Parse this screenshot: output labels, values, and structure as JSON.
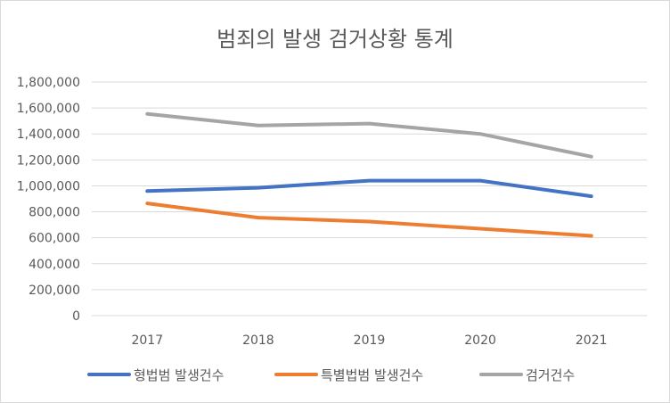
{
  "chart_data": {
    "type": "line",
    "title": "범죄의 발생 검거상황 통계",
    "xlabel": "",
    "ylabel": "",
    "categories": [
      "2017",
      "2018",
      "2019",
      "2020",
      "2021"
    ],
    "ylim": [
      0,
      1800000
    ],
    "yticks": [
      0,
      200000,
      400000,
      600000,
      800000,
      1000000,
      1200000,
      1400000,
      1600000,
      1800000
    ],
    "ytick_labels": [
      "0",
      "200,000",
      "400,000",
      "600,000",
      "800,000",
      "1,000,000",
      "1,200,000",
      "1,400,000",
      "1,600,000",
      "1,800,000"
    ],
    "grid": true,
    "legend_position": "bottom",
    "series": [
      {
        "name": "형법범 발생건수",
        "color": "#4472C4",
        "values": [
          960000,
          985000,
          1040000,
          1040000,
          920000
        ]
      },
      {
        "name": "특별법범 발생건수",
        "color": "#ED7D31",
        "values": [
          865000,
          755000,
          725000,
          670000,
          615000
        ]
      },
      {
        "name": "검거건수",
        "color": "#A5A5A5",
        "values": [
          1555000,
          1465000,
          1480000,
          1400000,
          1225000
        ]
      }
    ]
  }
}
